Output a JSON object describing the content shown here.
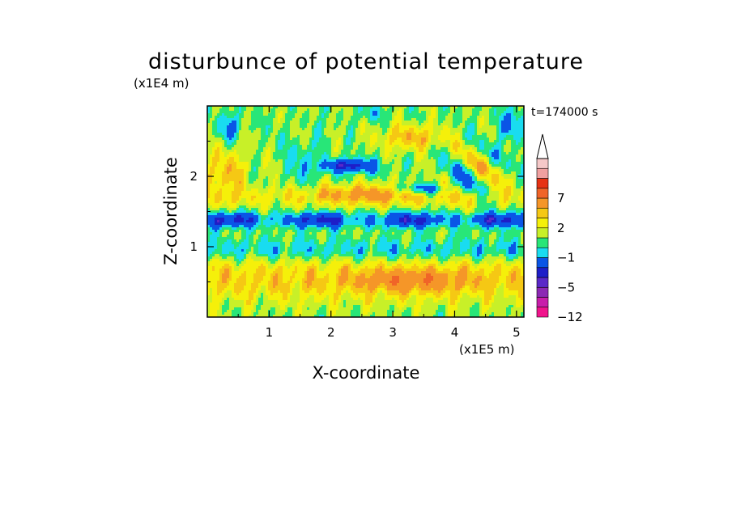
{
  "chart_data": {
    "type": "heatmap",
    "title": "disturbunce of potential temperature",
    "time_label": "t=174000 s",
    "xlabel": "X-coordinate",
    "ylabel": "Z-coordinate",
    "x_unit": "(x1E5 m)",
    "y_unit": "(x1E4 m)",
    "x_ticks": [
      1,
      2,
      3,
      4,
      5
    ],
    "y_ticks": [
      1,
      2
    ],
    "xlim": [
      0,
      5.12
    ],
    "ylim": [
      0,
      3.0
    ],
    "colorbar": {
      "labels": [
        "7",
        "2",
        "−1",
        "−5",
        "−12"
      ],
      "label_levels": [
        7,
        2,
        -1,
        -5,
        -12
      ],
      "extend": "max",
      "colors": [
        "#f0148c",
        "#c81eaa",
        "#8c28b4",
        "#5a28c8",
        "#1e1ec8",
        "#0a55e6",
        "#19dcf0",
        "#28e678",
        "#c8f028",
        "#f5f00a",
        "#f5c814",
        "#f59628",
        "#f06428",
        "#e63214",
        "#f0a0a0",
        "#f5c8c8"
      ]
    },
    "field_description": "Contour-filled perturbation field with alternating warm (yellow/orange) and cool (cyan/blue) layers; strongest cold anomaly band near z=1.2-1.5 x1E4 m, warm wave trains above z=2 x1E4 m."
  }
}
